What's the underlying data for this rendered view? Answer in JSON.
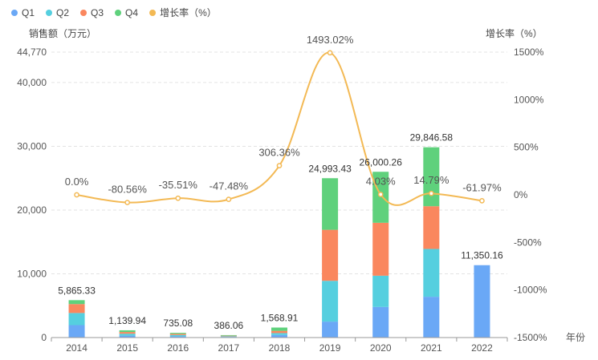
{
  "chart_data": {
    "type": "bar+line",
    "categories": [
      "2014",
      "2015",
      "2016",
      "2017",
      "2018",
      "2019",
      "2020",
      "2021",
      "2022"
    ],
    "series": [
      {
        "name": "Q1",
        "color": "#6aa8f6",
        "values": [
          1950,
          300,
          200,
          100,
          400,
          2500,
          4800,
          6400,
          11350.16
        ]
      },
      {
        "name": "Q2",
        "color": "#55cfdf",
        "values": [
          1900,
          300,
          200,
          100,
          300,
          6400,
          4900,
          7500,
          0
        ]
      },
      {
        "name": "Q3",
        "color": "#fa875e",
        "values": [
          1400,
          270,
          175,
          90,
          350,
          8000,
          8300,
          6700,
          0
        ]
      },
      {
        "name": "Q4",
        "color": "#5fd17c",
        "values": [
          615.33,
          269.94,
          160.08,
          96.06,
          518.91,
          8093.43,
          8000.26,
          9246.58,
          0
        ]
      }
    ],
    "totals": [
      "5,865.33",
      "1,139.94",
      "735.08",
      "386.06",
      "1,568.91",
      "24,993.43",
      "26,000.26",
      "29,846.58",
      "11,350.16"
    ],
    "totals_values": [
      5865.33,
      1139.94,
      735.08,
      386.06,
      1568.91,
      24993.43,
      26000.26,
      29846.58,
      11350.16
    ],
    "growth": {
      "name": "增长率（%）",
      "color": "#f3b954",
      "values": [
        0.0,
        -80.56,
        -35.51,
        -47.48,
        306.36,
        1493.02,
        4.03,
        14.79,
        -61.97
      ],
      "labels": [
        "0.0%",
        "-80.56%",
        "-35.51%",
        "-47.48%",
        "306.36%",
        "1493.02%",
        "4.03%",
        "14.79%",
        "-61.97%"
      ]
    },
    "y_left": {
      "title": "销售额（万元）",
      "range": [
        0,
        44770
      ],
      "ticks": [
        0,
        10000,
        20000,
        30000,
        40000,
        44770
      ],
      "tick_labels": [
        "0",
        "10,000",
        "20,000",
        "30,000",
        "40,000",
        "44,770"
      ]
    },
    "y_right": {
      "title": "增长率（%）",
      "range": [
        -1500,
        1500
      ],
      "ticks": [
        -1500,
        -1000,
        -500,
        0,
        500,
        1000,
        1500
      ],
      "tick_labels": [
        "-1500%",
        "-1000%",
        "-500%",
        "0%",
        "500%",
        "1000%",
        "1500%"
      ]
    },
    "x_axis_title": "年份",
    "legend_position": "top-left"
  }
}
